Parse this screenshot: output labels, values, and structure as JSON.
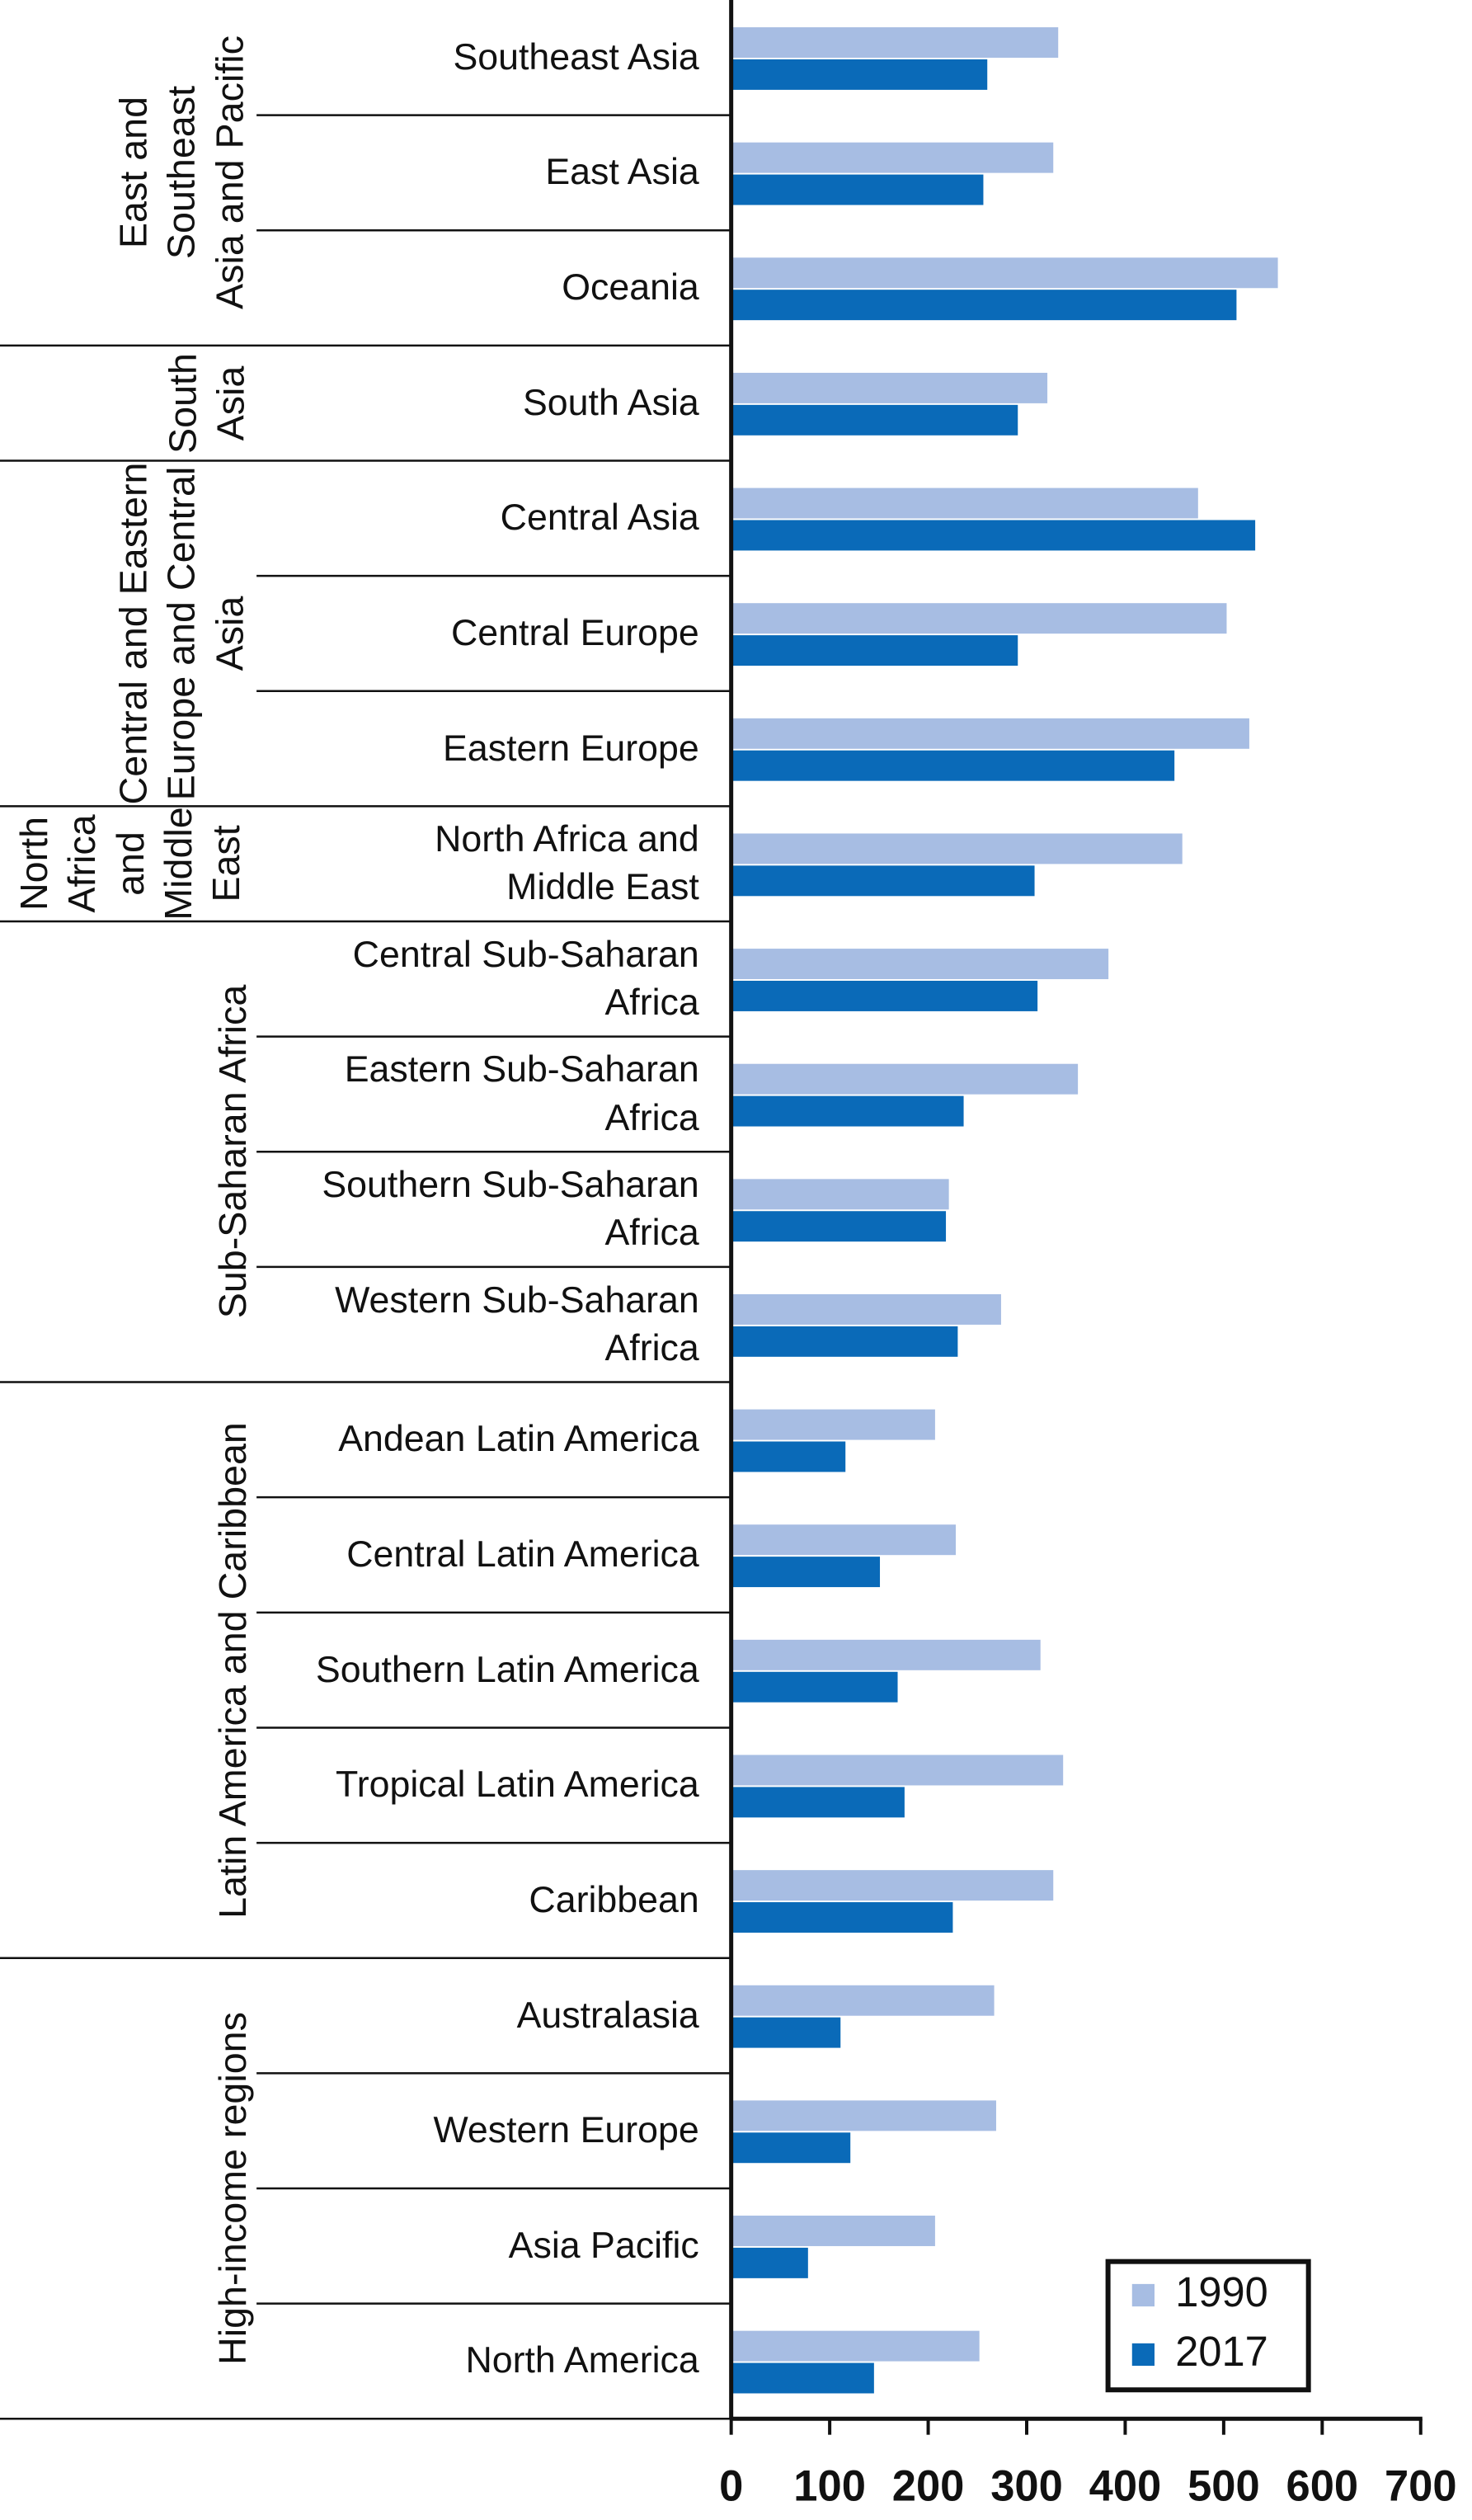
{
  "chart_data": {
    "type": "bar",
    "orientation": "horizontal",
    "groups": [
      {
        "name": "East and\nSoutheast\nAsia and Pacific",
        "categories": [
          "Southeast Asia",
          "East Asia",
          "Oceania"
        ]
      },
      {
        "name": "South\nAsia",
        "categories": [
          "South Asia"
        ]
      },
      {
        "name": "Central and Eastern\nEurope and Central\nAsia",
        "categories": [
          "Central Asia",
          "Central Europe",
          "Eastern Europe"
        ]
      },
      {
        "name": "North\nAfrica\nand\nMiddle\nEast",
        "categories": [
          "North Africa and\nMiddle East"
        ]
      },
      {
        "name": "Sub-Saharan Africa",
        "categories": [
          "Central Sub-Saharan\nAfrica",
          "Eastern Sub-Saharan\nAfrica",
          "Southern Sub-Saharan\nAfrica",
          "Western Sub-Saharan\nAfrica"
        ]
      },
      {
        "name": "Latin America and Caribbean",
        "categories": [
          "Andean Latin America",
          "Central Latin America",
          "Southern Latin America",
          "Tropical Latin America",
          "Caribbean"
        ]
      },
      {
        "name": "High-income regions",
        "categories": [
          "Australasia",
          "Western Europe",
          "Asia Pacific",
          "North America"
        ]
      }
    ],
    "series": [
      {
        "name": "1990",
        "color": "#a7bde3",
        "values": [
          332,
          327,
          555,
          321,
          474,
          503,
          526,
          458,
          383,
          352,
          221,
          274,
          207,
          228,
          314,
          337,
          327,
          267,
          269,
          207,
          252
        ]
      },
      {
        "name": "2017",
        "color": "#0a6ab8",
        "values": [
          260,
          256,
          513,
          291,
          532,
          291,
          450,
          308,
          311,
          236,
          218,
          230,
          116,
          151,
          169,
          176,
          225,
          111,
          121,
          78,
          145
        ]
      }
    ],
    "xlim": [
      0,
      700
    ],
    "xticks": [
      0,
      100,
      200,
      300,
      400,
      500,
      600,
      700
    ],
    "legend": "lower right"
  }
}
